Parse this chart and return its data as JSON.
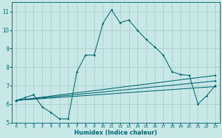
{
  "xlabel": "Humidex (Indice chaleur)",
  "bg_color": "#c8e8e8",
  "line_color": "#006870",
  "grid_color": "#aacece",
  "xlim": [
    -0.5,
    23.5
  ],
  "ylim": [
    5,
    11.5
  ],
  "xticks": [
    0,
    1,
    2,
    3,
    4,
    5,
    6,
    7,
    8,
    9,
    10,
    11,
    12,
    13,
    14,
    15,
    16,
    17,
    18,
    19,
    20,
    21,
    22,
    23
  ],
  "yticks": [
    5,
    6,
    7,
    8,
    9,
    10,
    11
  ],
  "line1_x": [
    0,
    1,
    2,
    3,
    4,
    5,
    6,
    7,
    8,
    9,
    10,
    11,
    12,
    13,
    14,
    15,
    16,
    17,
    18,
    19,
    20,
    21,
    22,
    23
  ],
  "line1_y": [
    6.2,
    6.35,
    6.5,
    5.85,
    5.55,
    5.2,
    5.2,
    7.75,
    8.65,
    8.65,
    10.35,
    11.1,
    10.4,
    10.55,
    10.0,
    9.5,
    9.1,
    8.65,
    7.75,
    7.6,
    7.55,
    6.0,
    6.45,
    7.0
  ],
  "line2_x": [
    0,
    23
  ],
  "line2_y": [
    6.2,
    7.55
  ],
  "line3_x": [
    0,
    23
  ],
  "line3_y": [
    6.2,
    7.25
  ],
  "line4_x": [
    0,
    23
  ],
  "line4_y": [
    6.2,
    6.95
  ]
}
